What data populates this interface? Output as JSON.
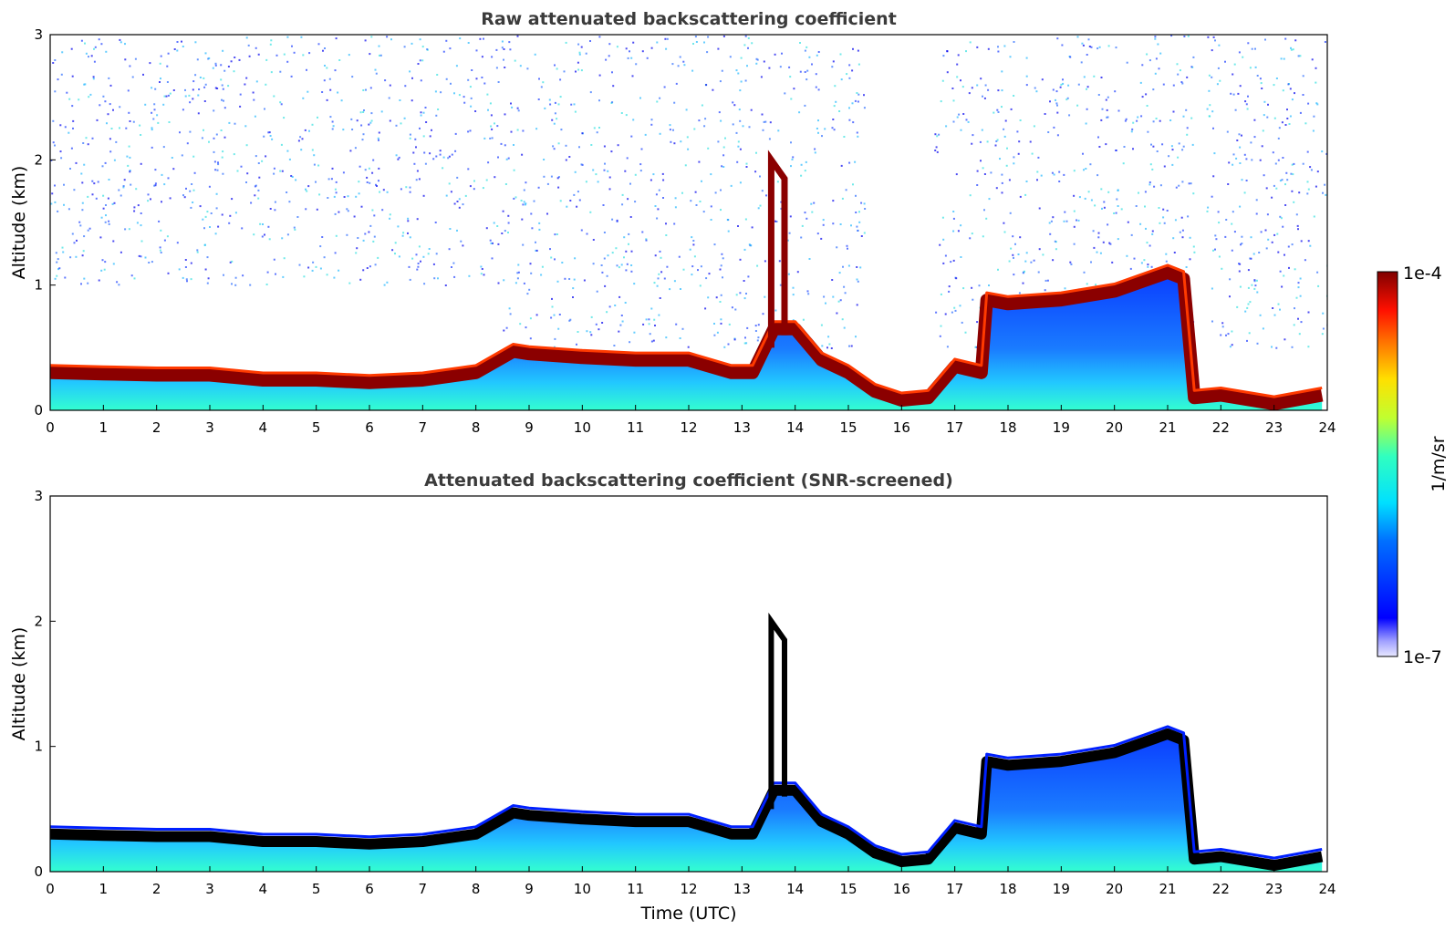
{
  "chart_data": [
    {
      "type": "heatmap",
      "title": "Raw attenuated backscattering coefficient",
      "xlabel": "",
      "ylabel": "Altitude (km)",
      "xlim": [
        0,
        24
      ],
      "ylim": [
        0,
        3
      ],
      "x_ticks": [
        "0",
        "1",
        "2",
        "3",
        "4",
        "5",
        "6",
        "7",
        "8",
        "9",
        "10",
        "11",
        "12",
        "13",
        "14",
        "15",
        "16",
        "17",
        "18",
        "19",
        "20",
        "21",
        "22",
        "23",
        "24"
      ],
      "y_ticks": [
        "0",
        "1",
        "2",
        "3"
      ],
      "cloud_base_km": {
        "time_utc": [
          0,
          1,
          2,
          3,
          4,
          5,
          6,
          7,
          8,
          8.7,
          9,
          10,
          11,
          12,
          12.8,
          13.2,
          13.6,
          14,
          14.5,
          15,
          15.5,
          16,
          16.5,
          17,
          17.5,
          17.6,
          18,
          19,
          20,
          21,
          21.3,
          21.5,
          22,
          23,
          23.9
        ],
        "altitude_km": [
          0.3,
          0.29,
          0.28,
          0.28,
          0.24,
          0.24,
          0.22,
          0.24,
          0.3,
          0.47,
          0.45,
          0.42,
          0.4,
          0.4,
          0.3,
          0.3,
          0.65,
          0.65,
          0.4,
          0.3,
          0.15,
          0.08,
          0.1,
          0.35,
          0.3,
          0.88,
          0.85,
          0.88,
          0.95,
          1.1,
          1.05,
          0.1,
          0.12,
          0.05,
          0.12
        ]
      },
      "noise_region": "scattered signal above cloud layer up to 3 km",
      "colormap": "jet"
    },
    {
      "type": "heatmap",
      "title": "Attenuated backscattering coefficient (SNR-screened)",
      "xlabel": "Time (UTC)",
      "ylabel": "Altitude (km)",
      "xlim": [
        0,
        24
      ],
      "ylim": [
        0,
        3
      ],
      "x_ticks": [
        "0",
        "1",
        "2",
        "3",
        "4",
        "5",
        "6",
        "7",
        "8",
        "9",
        "10",
        "11",
        "12",
        "13",
        "14",
        "15",
        "16",
        "17",
        "18",
        "19",
        "20",
        "21",
        "22",
        "23",
        "24"
      ],
      "y_ticks": [
        "0",
        "1",
        "2",
        "3"
      ],
      "colormap": "jet"
    }
  ],
  "colorbar": {
    "max_label": "1e-4",
    "min_label": "1e-7",
    "unit_label": "1/m/sr"
  }
}
